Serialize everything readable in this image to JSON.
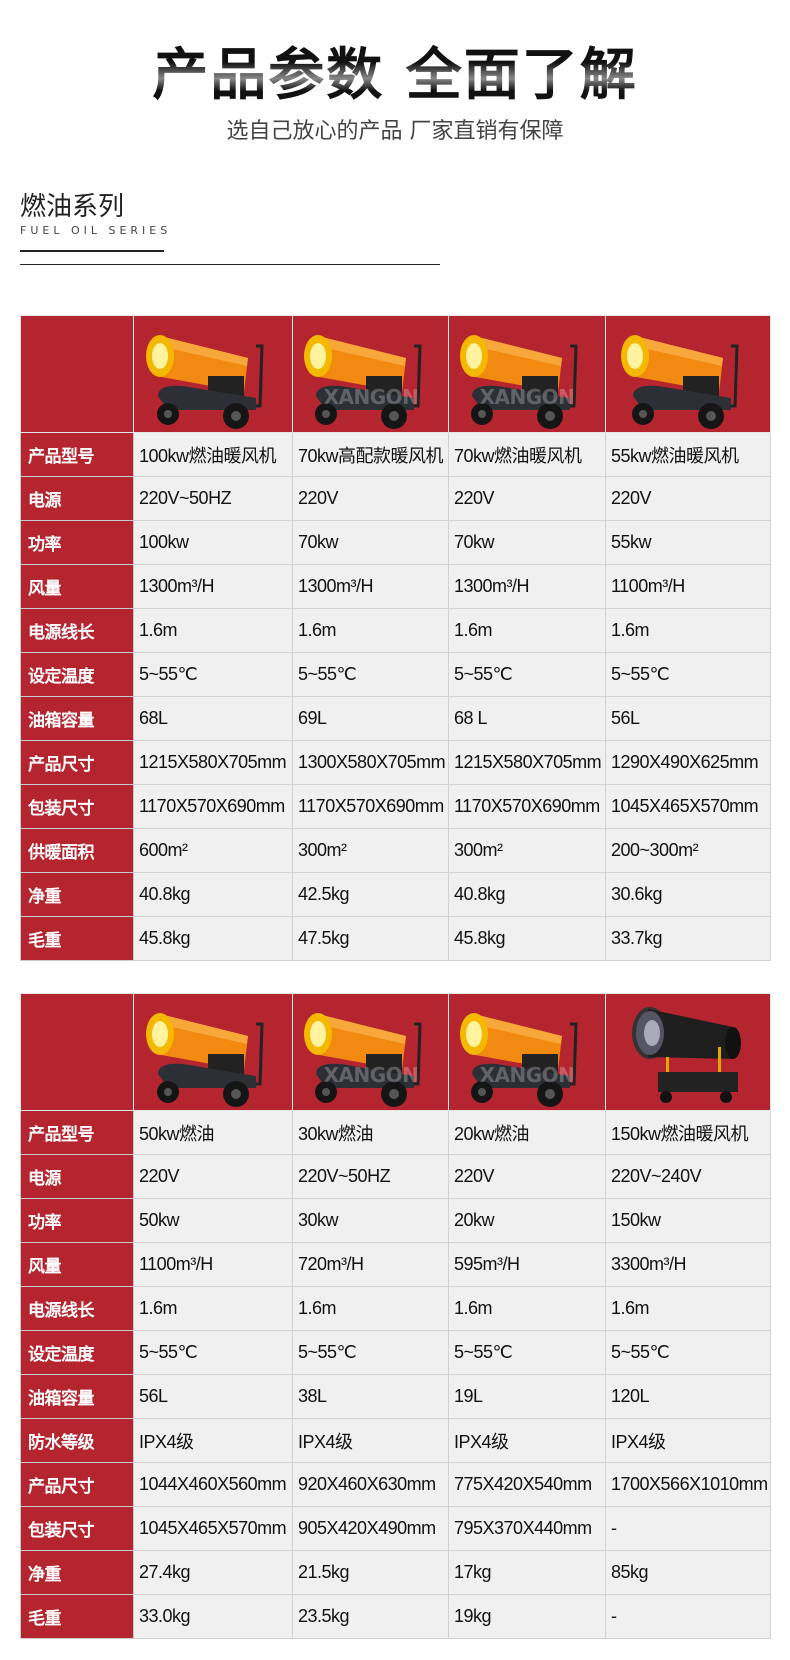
{
  "header": {
    "title": "产品参数 全面了解",
    "subtitle": "选自己放心的产品 厂家直销有保障"
  },
  "section": {
    "title": "燃油系列",
    "subtitle_en": "FUEL OIL SERIES"
  },
  "colors": {
    "accent_red": "#b5252f",
    "cell_bg": "#f0f0f0",
    "heater_orange": "#f28a12"
  },
  "tables": [
    {
      "products": [
        {
          "image": "orange-heater",
          "watermark": ""
        },
        {
          "image": "orange-heater",
          "watermark": "XANGON"
        },
        {
          "image": "orange-heater",
          "watermark": "XANGON"
        },
        {
          "image": "orange-heater",
          "watermark": ""
        }
      ],
      "rows": [
        {
          "label": "产品型号",
          "values": [
            "100kw燃油暖风机",
            "70kw高配款暖风机",
            "70kw燃油暖风机",
            "55kw燃油暖风机"
          ]
        },
        {
          "label": "电源",
          "values": [
            "220V~50HZ",
            "220V",
            "220V",
            "220V"
          ]
        },
        {
          "label": "功率",
          "values": [
            "100kw",
            "70kw",
            "70kw",
            "55kw"
          ]
        },
        {
          "label": "风量",
          "values": [
            "1300m³/H",
            "1300m³/H",
            "1300m³/H",
            "1100m³/H"
          ]
        },
        {
          "label": "电源线长",
          "values": [
            "1.6m",
            "1.6m",
            "1.6m",
            "1.6m"
          ]
        },
        {
          "label": "设定温度",
          "values": [
            "5~55℃",
            "5~55℃",
            "5~55℃",
            "5~55℃"
          ]
        },
        {
          "label": "油箱容量",
          "values": [
            "68L",
            "69L",
            "68 L",
            "56L"
          ]
        },
        {
          "label": "产品尺寸",
          "values": [
            "1215X580X705mm",
            "1300X580X705mm",
            "1215X580X705mm",
            "1290X490X625mm"
          ]
        },
        {
          "label": "包装尺寸",
          "values": [
            "1170X570X690mm",
            "1170X570X690mm",
            "1170X570X690mm",
            "1045X465X570mm"
          ]
        },
        {
          "label": "供暖面积",
          "values": [
            "600m²",
            "300m²",
            "300m²",
            "200~300m²"
          ]
        },
        {
          "label": "净重",
          "values": [
            "40.8kg",
            "42.5kg",
            "40.8kg",
            "30.6kg"
          ]
        },
        {
          "label": "毛重",
          "values": [
            "45.8kg",
            "47.5kg",
            "45.8kg",
            "33.7kg"
          ]
        }
      ]
    },
    {
      "products": [
        {
          "image": "orange-heater",
          "watermark": ""
        },
        {
          "image": "orange-heater",
          "watermark": "XANGON"
        },
        {
          "image": "orange-heater",
          "watermark": "XANGON"
        },
        {
          "image": "black-heater",
          "watermark": ""
        }
      ],
      "rows": [
        {
          "label": "产品型号",
          "values": [
            "50kw燃油",
            "30kw燃油",
            "20kw燃油",
            "150kw燃油暖风机"
          ]
        },
        {
          "label": "电源",
          "values": [
            "220V",
            "220V~50HZ",
            "220V",
            "220V~240V"
          ]
        },
        {
          "label": "功率",
          "values": [
            "50kw",
            "30kw",
            "20kw",
            "150kw"
          ]
        },
        {
          "label": "风量",
          "values": [
            "1100m³/H",
            "720m³/H",
            "595m³/H",
            "3300m³/H"
          ]
        },
        {
          "label": "电源线长",
          "values": [
            "1.6m",
            "1.6m",
            "1.6m",
            "1.6m"
          ]
        },
        {
          "label": "设定温度",
          "values": [
            "5~55℃",
            "5~55℃",
            "5~55℃",
            "5~55℃"
          ]
        },
        {
          "label": "油箱容量",
          "values": [
            "56L",
            "38L",
            "19L",
            "120L"
          ]
        },
        {
          "label": "防水等级",
          "values": [
            "IPX4级",
            "IPX4级",
            "IPX4级",
            "IPX4级"
          ]
        },
        {
          "label": "产品尺寸",
          "values": [
            "1044X460X560mm",
            "920X460X630mm",
            "775X420X540mm",
            "1700X566X1010mm"
          ]
        },
        {
          "label": "包装尺寸",
          "values": [
            "1045X465X570mm",
            "905X420X490mm",
            "795X370X440mm",
            "-"
          ]
        },
        {
          "label": "净重",
          "values": [
            "27.4kg",
            "21.5kg",
            "17kg",
            "85kg"
          ]
        },
        {
          "label": "毛重",
          "values": [
            "33.0kg",
            "23.5kg",
            "19kg",
            "-"
          ]
        }
      ]
    }
  ]
}
